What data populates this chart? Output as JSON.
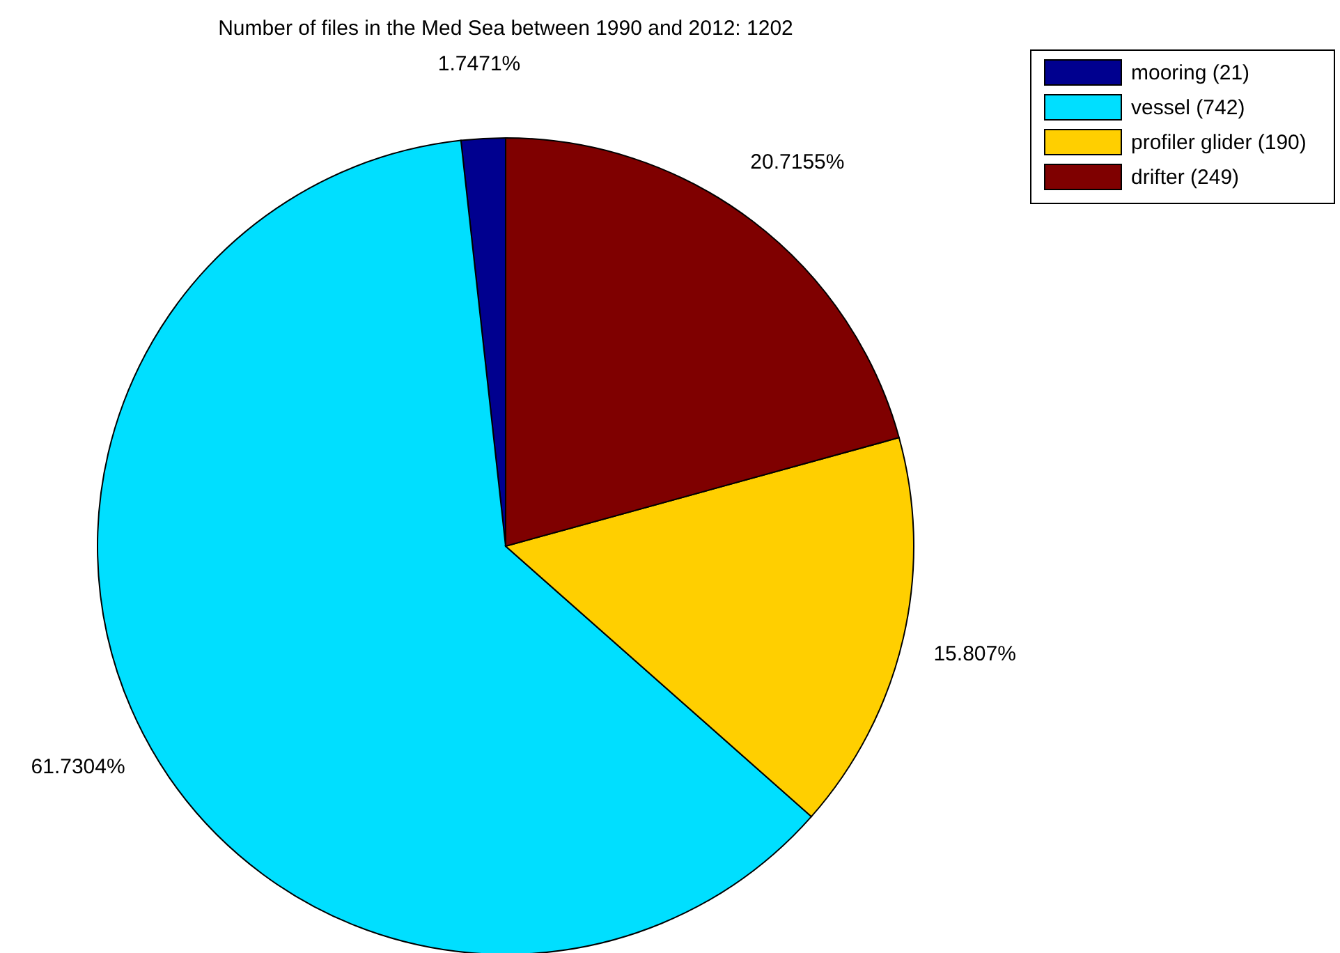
{
  "chart_data": {
    "type": "pie",
    "title": "Number of files in the Med Sea between 1990 and 2012: 1202",
    "categories": [
      "mooring (21)",
      "vessel (742)",
      "profiler glider (190)",
      "drifter (249)"
    ],
    "values": [
      1.7471,
      61.7304,
      15.807,
      20.7155
    ],
    "value_labels": [
      "1.7471%",
      "61.7304%",
      "15.807%",
      "20.7155%"
    ],
    "colors": [
      "#00008f",
      "#00dfff",
      "#ffcf00",
      "#7f0000"
    ],
    "legend": "top right"
  }
}
